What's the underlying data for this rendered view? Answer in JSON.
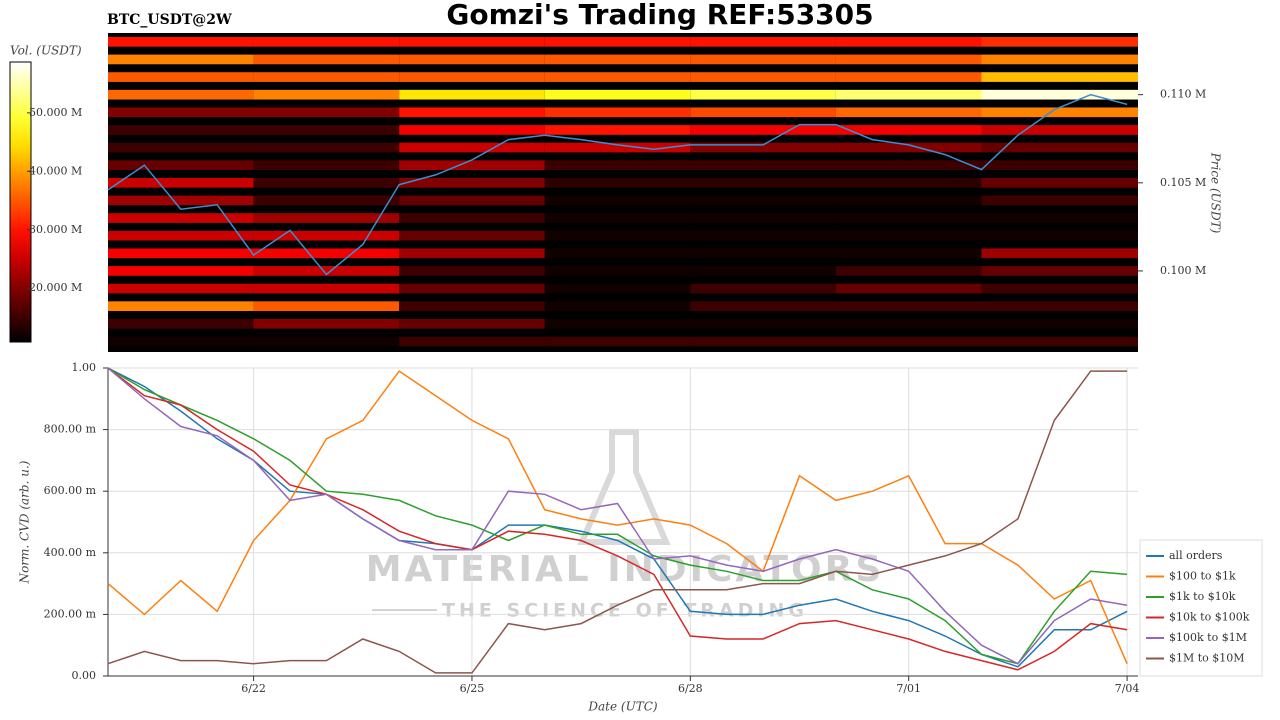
{
  "chart_data": [
    {
      "type": "heatmap",
      "title": "Gomzi's Trading REF:53305",
      "subtitle": "BTC_USDT@2W",
      "y_label": "Price (USDT)",
      "colorbar_label": "Vol. (USDT)",
      "colormap": "hot",
      "x_bins": [
        20,
        22,
        24,
        26,
        28,
        30,
        32,
        34.15
      ],
      "y_bins": [
        95500,
        96500,
        97500,
        98500,
        99500,
        100500,
        101500,
        102500,
        103500,
        104500,
        105500,
        106500,
        107500,
        108500,
        109500,
        110500,
        111500,
        112500,
        113500
      ],
      "values": [
        [
          12,
          12,
          15,
          15,
          15,
          15,
          15
        ],
        [
          15,
          20,
          18,
          12,
          12,
          12,
          12
        ],
        [
          38,
          35,
          15,
          12,
          15,
          15,
          15
        ],
        [
          25,
          25,
          18,
          12,
          15,
          18,
          15
        ],
        [
          28,
          25,
          15,
          12,
          12,
          15,
          18
        ],
        [
          28,
          28,
          22,
          12,
          12,
          12,
          22
        ],
        [
          25,
          25,
          18,
          12,
          12,
          12,
          12
        ],
        [
          25,
          22,
          15,
          12,
          12,
          12,
          12
        ],
        [
          22,
          15,
          18,
          12,
          12,
          12,
          15
        ],
        [
          25,
          15,
          20,
          14,
          14,
          14,
          18
        ],
        [
          18,
          15,
          22,
          15,
          15,
          15,
          15
        ],
        [
          15,
          15,
          25,
          25,
          20,
          20,
          18
        ],
        [
          15,
          15,
          28,
          30,
          28,
          28,
          25
        ],
        [
          20,
          20,
          30,
          32,
          34,
          36,
          38
        ],
        [
          36,
          38,
          45,
          48,
          50,
          52,
          57
        ],
        [
          35,
          35,
          35,
          35,
          35,
          35,
          42
        ],
        [
          38,
          35,
          35,
          35,
          35,
          35,
          38
        ],
        [
          30,
          30,
          30,
          30,
          30,
          30,
          32
        ]
      ],
      "clim": [
        10.8,
        58.7
      ],
      "colorbar_ticks": [
        {
          "value": 20,
          "label": "20.000 M"
        },
        {
          "value": 30,
          "label": "30.000 M"
        },
        {
          "value": 40,
          "label": "40.000 M"
        },
        {
          "value": 50,
          "label": "50.000 M"
        }
      ],
      "xlim": [
        20,
        34.15
      ],
      "ylim": [
        95400,
        113500
      ],
      "yticks": [
        {
          "value": 100000,
          "label": "0.100 M"
        },
        {
          "value": 105000,
          "label": "0.105 M"
        },
        {
          "value": 110000,
          "label": "0.110 M"
        }
      ],
      "x": [
        20,
        20.5,
        21,
        21.5,
        22,
        22.5,
        23,
        23.5,
        24,
        24.5,
        25,
        25.5,
        26,
        26.5,
        27,
        27.5,
        28,
        28.5,
        29,
        29.5,
        30,
        30.5,
        31,
        31.5,
        32,
        32.5,
        33,
        33.5,
        34
      ],
      "series": [
        {
          "color": "#3a8fd0",
          "values": [
            104600,
            106000,
            103500,
            103750,
            100900,
            102300,
            99800,
            101500,
            104900,
            105450,
            106300,
            107450,
            107700,
            107450,
            107150,
            106900,
            107150,
            107150,
            107150,
            108300,
            108300,
            107450,
            107150,
            106600,
            105750,
            107700,
            109150,
            110000,
            109450
          ]
        }
      ]
    },
    {
      "type": "line",
      "x_label": "Date (UTC)",
      "y_label": "Norm. CVD (arb. u.)",
      "watermark": [
        "MATERIAL INDICATORS",
        "THE SCIENCE OF TRADING"
      ],
      "grid": true,
      "legend": "right",
      "xlim": [
        20,
        34.15
      ],
      "ylim": [
        0,
        1
      ],
      "xticks": [
        {
          "value": 22,
          "label": "6/22"
        },
        {
          "value": 25,
          "label": "6/25"
        },
        {
          "value": 28,
          "label": "6/28"
        },
        {
          "value": 31,
          "label": "7/01"
        },
        {
          "value": 34,
          "label": "7/04"
        }
      ],
      "yticks": [
        {
          "value": 0,
          "label": "0.00"
        },
        {
          "value": 0.2,
          "label": "200.00 m"
        },
        {
          "value": 0.4,
          "label": "400.00 m"
        },
        {
          "value": 0.6,
          "label": "600.00 m"
        },
        {
          "value": 0.8,
          "label": "800.00 m"
        },
        {
          "value": 1,
          "label": "1.00"
        }
      ],
      "x": [
        20,
        20.5,
        21,
        21.5,
        22,
        22.5,
        23,
        23.5,
        24,
        24.5,
        25,
        25.5,
        26,
        26.5,
        27,
        27.5,
        28,
        28.5,
        29,
        29.5,
        30,
        30.5,
        31,
        31.5,
        32,
        32.5,
        33,
        33.5,
        34
      ],
      "series": [
        {
          "name": "all orders",
          "color": "#1f77b4",
          "values": [
            1.0,
            0.94,
            0.86,
            0.77,
            0.7,
            0.6,
            0.59,
            0.51,
            0.44,
            0.43,
            0.41,
            0.49,
            0.49,
            0.47,
            0.44,
            0.38,
            0.21,
            0.2,
            0.2,
            0.23,
            0.25,
            0.21,
            0.18,
            0.13,
            0.07,
            0.03,
            0.15,
            0.15,
            0.21
          ]
        },
        {
          "name": "$100 to $1k",
          "color": "#ff7f0e",
          "values": [
            0.3,
            0.2,
            0.31,
            0.21,
            0.44,
            0.57,
            0.77,
            0.83,
            0.99,
            0.91,
            0.83,
            0.77,
            0.54,
            0.51,
            0.49,
            0.51,
            0.49,
            0.43,
            0.34,
            0.65,
            0.57,
            0.6,
            0.65,
            0.43,
            0.43,
            0.36,
            0.25,
            0.31,
            0.04
          ]
        },
        {
          "name": "$1k to $10k",
          "color": "#2ca02c",
          "values": [
            1.0,
            0.93,
            0.88,
            0.83,
            0.77,
            0.7,
            0.6,
            0.59,
            0.57,
            0.52,
            0.49,
            0.44,
            0.49,
            0.46,
            0.46,
            0.39,
            0.36,
            0.34,
            0.31,
            0.31,
            0.34,
            0.28,
            0.25,
            0.18,
            0.07,
            0.04,
            0.21,
            0.34,
            0.33
          ]
        },
        {
          "name": "$10k to $100k",
          "color": "#d62728",
          "values": [
            1.0,
            0.91,
            0.88,
            0.8,
            0.73,
            0.62,
            0.59,
            0.54,
            0.47,
            0.43,
            0.41,
            0.47,
            0.46,
            0.44,
            0.39,
            0.33,
            0.13,
            0.12,
            0.12,
            0.17,
            0.18,
            0.15,
            0.12,
            0.08,
            0.05,
            0.02,
            0.08,
            0.17,
            0.15
          ]
        },
        {
          "name": "$100k to $1M",
          "color": "#9467bd",
          "values": [
            1.0,
            0.9,
            0.81,
            0.78,
            0.7,
            0.57,
            0.59,
            0.51,
            0.44,
            0.41,
            0.41,
            0.6,
            0.59,
            0.54,
            0.56,
            0.38,
            0.39,
            0.36,
            0.34,
            0.38,
            0.41,
            0.38,
            0.34,
            0.21,
            0.1,
            0.04,
            0.18,
            0.25,
            0.23
          ]
        },
        {
          "name": "$1M to $10M",
          "color": "#8c564b",
          "values": [
            0.04,
            0.08,
            0.05,
            0.05,
            0.04,
            0.05,
            0.05,
            0.12,
            0.08,
            0.01,
            0.01,
            0.17,
            0.15,
            0.17,
            0.23,
            0.28,
            0.28,
            0.28,
            0.3,
            0.3,
            0.34,
            0.33,
            0.36,
            0.39,
            0.43,
            0.51,
            0.83,
            0.99,
            0.99
          ]
        }
      ]
    }
  ]
}
